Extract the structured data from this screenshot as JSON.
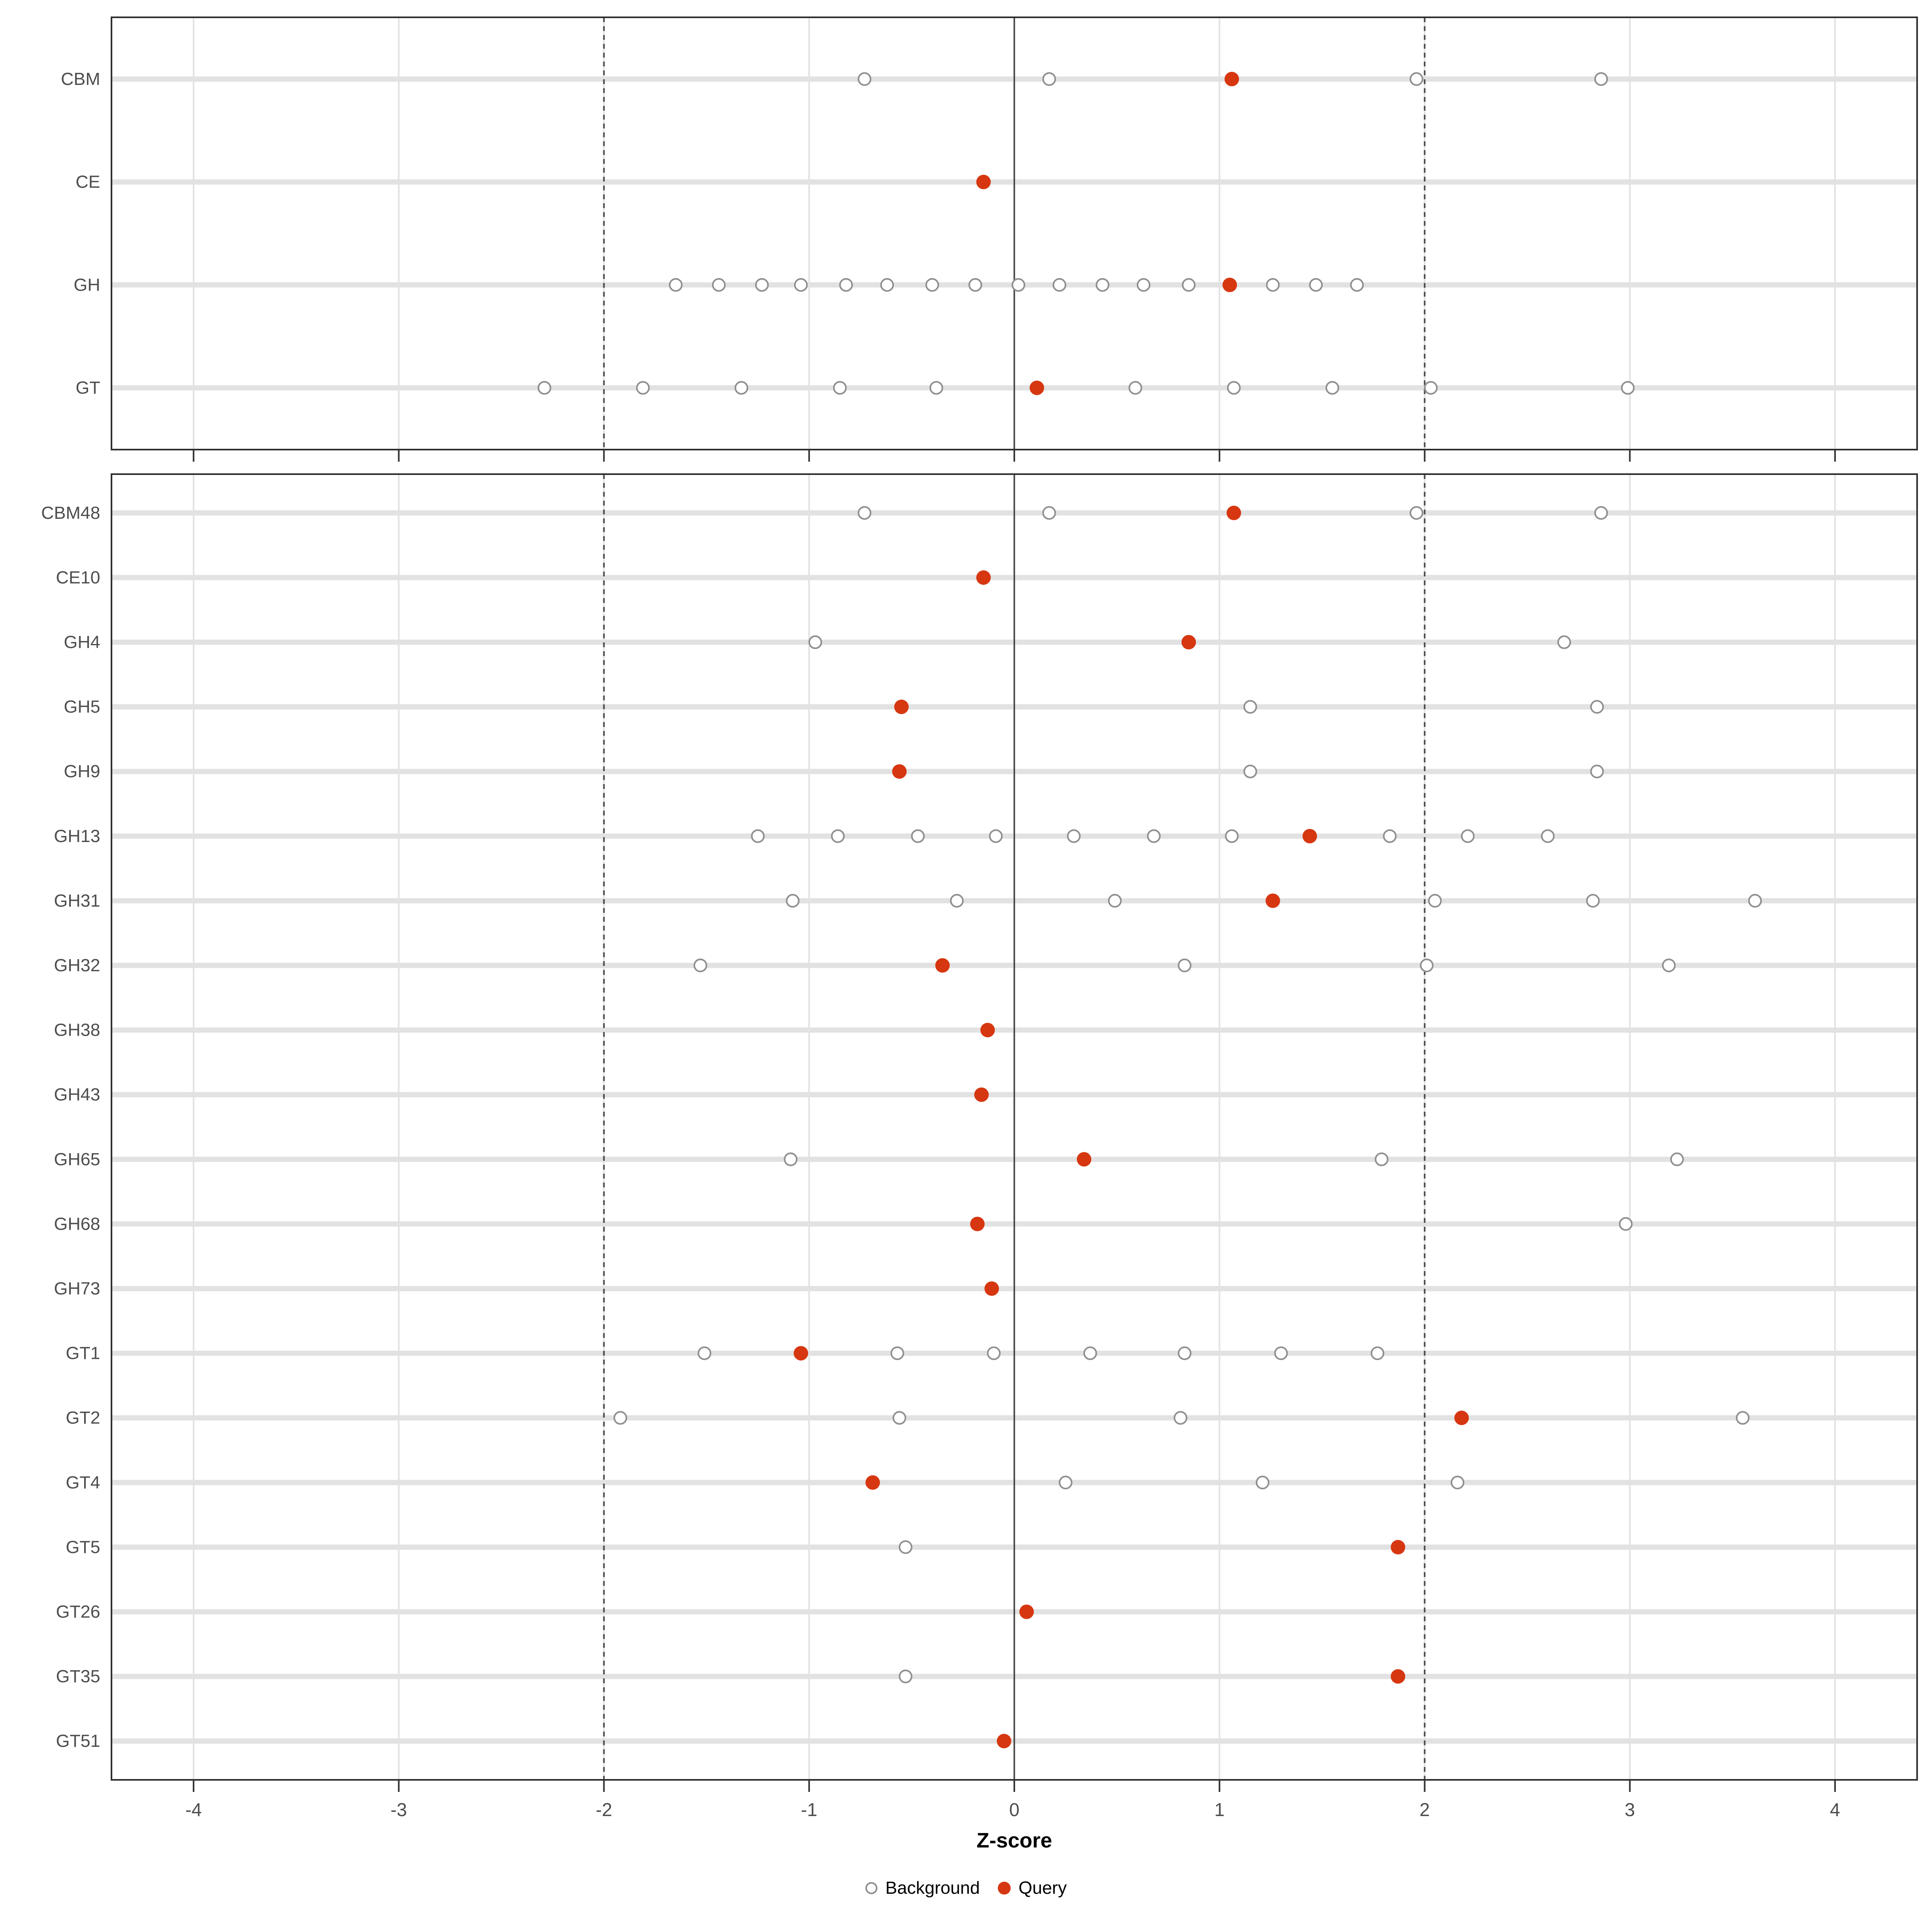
{
  "chart_data": {
    "type": "scatter",
    "title": "",
    "xlabel": "Z-score",
    "x_ticks": [
      -4,
      -3,
      -2,
      -1,
      0,
      1,
      2,
      3,
      4
    ],
    "xlim": [
      -4.4,
      4.4
    ],
    "vline_solid": 0,
    "vlines_dashed": [
      -2,
      2
    ],
    "grid": "on",
    "colors": {
      "query_marker": "#d63711",
      "background_marker_stroke": "#8f8f8f",
      "gridline": "#e2e2e2",
      "dashed_line": "#4a4a4a",
      "zero_line": "#4d4d4d",
      "panel_border": "#2e2e2e",
      "axis_text": "#4d4d4d",
      "tick_mark": "#333333"
    },
    "legend": {
      "position": "bottom",
      "items": [
        {
          "label": "Background",
          "marker": "open-circle"
        },
        {
          "label": "Query",
          "marker": "filled-circle"
        }
      ]
    },
    "panels": [
      {
        "name": "families",
        "rows": [
          {
            "label": "CBM",
            "background": [
              -0.73,
              0.17,
              1.96,
              2.86
            ],
            "query": [
              1.06
            ]
          },
          {
            "label": "CE",
            "background": [],
            "query": [
              -0.15
            ]
          },
          {
            "label": "GH",
            "background": [
              -1.65,
              -1.44,
              -1.23,
              -1.04,
              -0.82,
              -0.62,
              -0.4,
              -0.19,
              0.02,
              0.22,
              0.43,
              0.63,
              0.85,
              1.26,
              1.47,
              1.67
            ],
            "query": [
              1.05
            ]
          },
          {
            "label": "GT",
            "background": [
              -2.29,
              -1.81,
              -1.33,
              -0.85,
              -0.38,
              0.59,
              1.07,
              1.55,
              2.03,
              2.99
            ],
            "query": [
              0.11
            ]
          }
        ]
      },
      {
        "name": "subfamilies",
        "rows": [
          {
            "label": "CBM48",
            "background": [
              -0.73,
              0.17,
              1.96,
              2.86
            ],
            "query": [
              1.07
            ]
          },
          {
            "label": "CE10",
            "background": [],
            "query": [
              -0.15
            ]
          },
          {
            "label": "GH4",
            "background": [
              -0.97,
              2.68
            ],
            "query": [
              0.85
            ]
          },
          {
            "label": "GH5",
            "background": [
              1.15,
              2.84
            ],
            "query": [
              -0.55
            ]
          },
          {
            "label": "GH9",
            "background": [
              1.15,
              2.84
            ],
            "query": [
              -0.56
            ]
          },
          {
            "label": "GH13",
            "background": [
              -1.25,
              -0.86,
              -0.47,
              -0.09,
              0.29,
              0.68,
              1.06,
              1.83,
              2.21,
              2.6
            ],
            "query": [
              1.44
            ]
          },
          {
            "label": "GH31",
            "background": [
              -1.08,
              -0.28,
              0.49,
              2.05,
              2.82,
              3.61
            ],
            "query": [
              1.26
            ]
          },
          {
            "label": "GH32",
            "background": [
              -1.53,
              0.83,
              2.01,
              3.19
            ],
            "query": [
              -0.35
            ]
          },
          {
            "label": "GH38",
            "background": [],
            "query": [
              -0.13
            ]
          },
          {
            "label": "GH43",
            "background": [],
            "query": [
              -0.16
            ]
          },
          {
            "label": "GH65",
            "background": [
              -1.09,
              1.79,
              3.23
            ],
            "query": [
              0.34
            ]
          },
          {
            "label": "GH68",
            "background": [
              2.98
            ],
            "query": [
              -0.18
            ]
          },
          {
            "label": "GH73",
            "background": [],
            "query": [
              -0.11
            ]
          },
          {
            "label": "GT1",
            "background": [
              -1.51,
              -0.57,
              -0.1,
              0.37,
              0.83,
              1.3,
              1.77
            ],
            "query": [
              -1.04
            ]
          },
          {
            "label": "GT2",
            "background": [
              -1.92,
              -0.56,
              0.81,
              3.55
            ],
            "query": [
              2.18
            ]
          },
          {
            "label": "GT4",
            "background": [
              0.25,
              1.21,
              2.16
            ],
            "query": [
              -0.69
            ]
          },
          {
            "label": "GT5",
            "background": [
              -0.53
            ],
            "query": [
              1.87
            ]
          },
          {
            "label": "GT26",
            "background": [],
            "query": [
              0.06
            ]
          },
          {
            "label": "GT35",
            "background": [
              -0.53
            ],
            "query": [
              1.87
            ]
          },
          {
            "label": "GT51",
            "background": [],
            "query": [
              -0.05
            ]
          }
        ]
      }
    ]
  }
}
